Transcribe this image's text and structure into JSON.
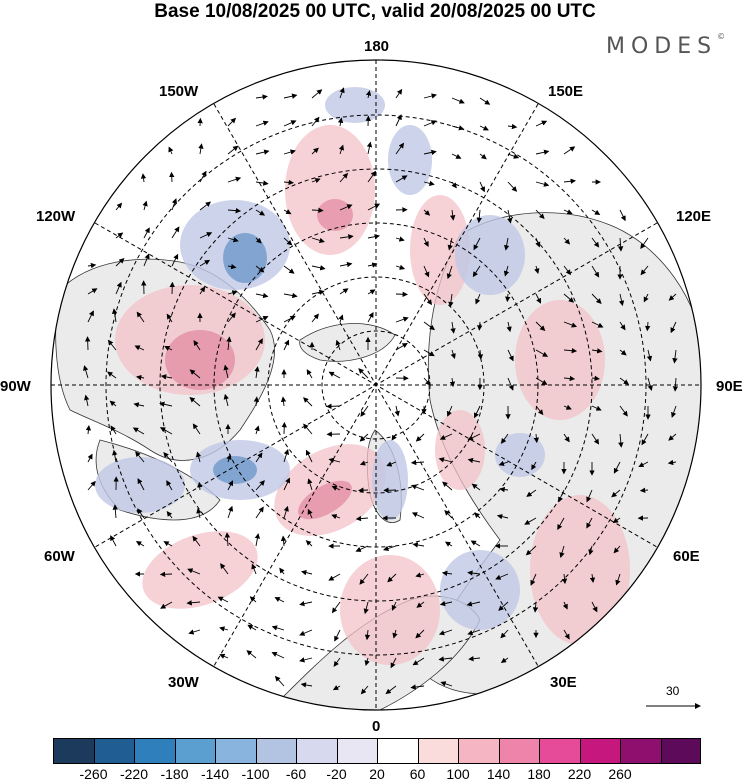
{
  "title": "Base 10/08/2025 00 UTC, valid 20/08/2025 00 UTC",
  "brand": "MODES",
  "brand_mark": "©",
  "longitude_labels": {
    "top": "180",
    "bottom": "0",
    "left": "90W",
    "right": "90E",
    "upper_left_1": "150W",
    "upper_left_2": "120W",
    "upper_right_1": "150E",
    "upper_right_2": "120E",
    "lower_left_1": "60W",
    "lower_left_2": "30W",
    "lower_right_1": "60E",
    "lower_right_2": "30E"
  },
  "reference_vector": "30",
  "colorbar": {
    "ticks": [
      "-260",
      "-220",
      "-180",
      "-140",
      "-100",
      "-60",
      "-20",
      "20",
      "60",
      "100",
      "140",
      "180",
      "220",
      "260"
    ],
    "colors": [
      "#1b3a5c",
      "#1f5d92",
      "#2f7fbd",
      "#5a9fd0",
      "#88b4dd",
      "#b3c4e2",
      "#d7d9ee",
      "#e8e6f3",
      "#ffffff",
      "#fbdcdc",
      "#f6b5c3",
      "#ef84aa",
      "#e54b98",
      "#c6177f",
      "#8e0f6e",
      "#5c0a59"
    ]
  }
}
